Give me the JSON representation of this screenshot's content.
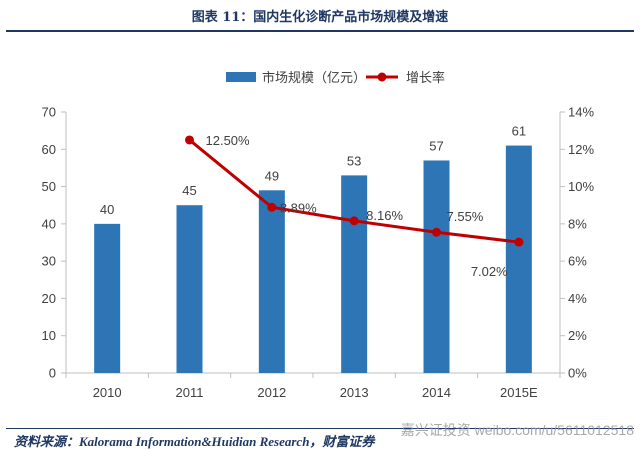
{
  "title": "图表 11：国内生化诊断产品市场规模及增速",
  "source": "资料来源：Kalorama Information&Huidian Research，财富证券",
  "watermark": "嘉兴证投资  weibo.com/u/5611012518",
  "colors": {
    "bar": "#2e75b6",
    "line": "#c00000",
    "axis": "#bfbfbf",
    "text": "#404040",
    "title": "#1f3763"
  },
  "chart_data": {
    "type": "bar",
    "categories": [
      "2010",
      "2011",
      "2012",
      "2013",
      "2014",
      "2015E"
    ],
    "series": [
      {
        "name": "市场规模（亿元）",
        "type": "bar",
        "axis": "left",
        "values": [
          40,
          45,
          49,
          53,
          57,
          61
        ]
      },
      {
        "name": "增长率",
        "type": "line",
        "axis": "right",
        "values": [
          null,
          12.5,
          8.89,
          8.16,
          7.55,
          7.02
        ],
        "labels": [
          "",
          "12.50%",
          "8.89%",
          "8.16%",
          "7.55%",
          "7.02%"
        ]
      }
    ],
    "y_left": {
      "ylim": [
        0,
        70
      ],
      "ticks": [
        "0",
        "10",
        "20",
        "30",
        "40",
        "50",
        "60",
        "70"
      ]
    },
    "y_right": {
      "ylim": [
        0,
        14
      ],
      "ticks": [
        "0%",
        "2%",
        "4%",
        "6%",
        "8%",
        "10%",
        "12%",
        "14%"
      ]
    },
    "legend": "top",
    "grid": false
  }
}
